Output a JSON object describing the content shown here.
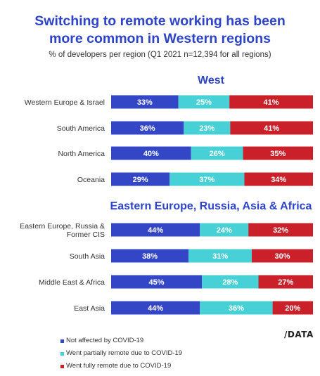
{
  "title_line1": "Switching to remote working has been",
  "title_line2": "more common in Western regions",
  "subtitle": "% of developers per region (Q1 2021 n=12,394 for all regions)",
  "brand": "/DATA",
  "colors": {
    "not_affected": "#3347c6",
    "partially_remote": "#47d0d6",
    "fully_remote": "#c9202a"
  },
  "legend": [
    {
      "label": "Not affected by COVID-19",
      "color": "#3347c6"
    },
    {
      "label": "Went partially remote due to COVID-19",
      "color": "#47d0d6"
    },
    {
      "label": "Went fully remote due to COVID-19",
      "color": "#c9202a"
    }
  ],
  "chart_data": {
    "type": "bar",
    "orientation": "horizontal",
    "stacked": true,
    "percent_labels": true,
    "series_names": [
      "Not affected by COVID-19",
      "Went partially remote due to COVID-19",
      "Went fully remote due to COVID-19"
    ],
    "groups": [
      {
        "name": "West",
        "categories": [
          {
            "label": [
              "Western Europe & Israel"
            ],
            "values": [
              33,
              25,
              41
            ]
          },
          {
            "label": [
              "South America"
            ],
            "values": [
              36,
              23,
              41
            ]
          },
          {
            "label": [
              "North America"
            ],
            "values": [
              40,
              26,
              35
            ]
          },
          {
            "label": [
              "Oceania"
            ],
            "values": [
              29,
              37,
              34
            ]
          }
        ]
      },
      {
        "name": "Eastern Europe, Russia, Asia & Africa",
        "categories": [
          {
            "label": [
              "Eastern Europe, Russia &",
              "Former CIS"
            ],
            "values": [
              44,
              24,
              32
            ]
          },
          {
            "label": [
              "South Asia"
            ],
            "values": [
              38,
              31,
              30
            ]
          },
          {
            "label": [
              "Middle East & Africa"
            ],
            "values": [
              45,
              28,
              27
            ]
          },
          {
            "label": [
              "East Asia"
            ],
            "values": [
              44,
              36,
              20
            ]
          }
        ]
      }
    ]
  }
}
